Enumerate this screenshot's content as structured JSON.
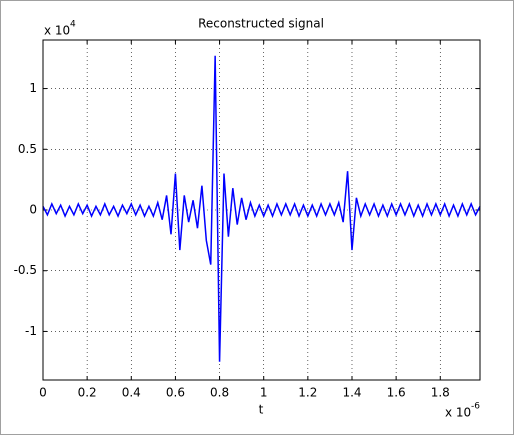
{
  "chart_data": {
    "type": "line",
    "title": "Reconstructed signal",
    "x_label": "t",
    "x_multiplier": {
      "base": "x 10",
      "exponent": "-6"
    },
    "y_multiplier": {
      "base": "x 10",
      "exponent": "4"
    },
    "xlim": [
      0,
      1.98
    ],
    "ylim": [
      -1.4,
      1.4
    ],
    "xticks": [
      0,
      0.2,
      0.4,
      0.6,
      0.8,
      1,
      1.2,
      1.4,
      1.6,
      1.8
    ],
    "yticks": [
      -1,
      -0.5,
      0,
      0.5,
      1
    ],
    "grid": true,
    "x": [
      0,
      0.02,
      0.04,
      0.06,
      0.08,
      0.1,
      0.12,
      0.14,
      0.16,
      0.18,
      0.2,
      0.22,
      0.24,
      0.26,
      0.28,
      0.3,
      0.32,
      0.34,
      0.36,
      0.38,
      0.4,
      0.42,
      0.44,
      0.46,
      0.48,
      0.5,
      0.52,
      0.54,
      0.56,
      0.58,
      0.6,
      0.62,
      0.64,
      0.66,
      0.68,
      0.7,
      0.72,
      0.74,
      0.76,
      0.78,
      0.8,
      0.82,
      0.84,
      0.86,
      0.88,
      0.9,
      0.92,
      0.94,
      0.96,
      0.98,
      1,
      1.02,
      1.04,
      1.06,
      1.08,
      1.1,
      1.12,
      1.14,
      1.16,
      1.18,
      1.2,
      1.22,
      1.24,
      1.26,
      1.28,
      1.3,
      1.32,
      1.34,
      1.36,
      1.38,
      1.4,
      1.42,
      1.44,
      1.46,
      1.48,
      1.5,
      1.52,
      1.54,
      1.56,
      1.58,
      1.6,
      1.62,
      1.64,
      1.66,
      1.68,
      1.7,
      1.72,
      1.74,
      1.76,
      1.78,
      1.8,
      1.82,
      1.84,
      1.86,
      1.88,
      1.9,
      1.92,
      1.94,
      1.96,
      1.98
    ],
    "series": [
      {
        "color": "#0000ff",
        "values": [
          0.03,
          -0.04,
          0.05,
          -0.03,
          0.04,
          -0.05,
          0.03,
          -0.04,
          0.05,
          -0.03,
          0.04,
          -0.05,
          0.03,
          -0.04,
          0.05,
          -0.04,
          0.03,
          -0.05,
          0.04,
          -0.03,
          0.05,
          -0.04,
          0.04,
          -0.05,
          0.03,
          -0.05,
          0.06,
          -0.08,
          0.12,
          -0.2,
          0.3,
          -0.33,
          0.12,
          -0.1,
          0.08,
          -0.15,
          0.2,
          -0.25,
          -0.45,
          1.27,
          -1.25,
          0.3,
          -0.22,
          0.18,
          -0.12,
          0.1,
          -0.08,
          0.06,
          -0.05,
          0.04,
          -0.05,
          0.04,
          -0.05,
          0.05,
          -0.04,
          0.05,
          -0.04,
          0.05,
          -0.05,
          0.04,
          -0.05,
          0.04,
          -0.05,
          0.05,
          -0.04,
          0.05,
          -0.04,
          0.06,
          -0.1,
          0.32,
          -0.33,
          0.1,
          -0.05,
          0.05,
          -0.04,
          0.05,
          -0.05,
          0.04,
          -0.05,
          0.05,
          -0.04,
          0.05,
          -0.04,
          0.05,
          -0.05,
          0.04,
          -0.05,
          0.05,
          -0.04,
          0.05,
          -0.04,
          0.05,
          -0.05,
          0.04,
          -0.05,
          0.05,
          -0.04,
          0.05,
          -0.04,
          0.03
        ]
      }
    ]
  }
}
